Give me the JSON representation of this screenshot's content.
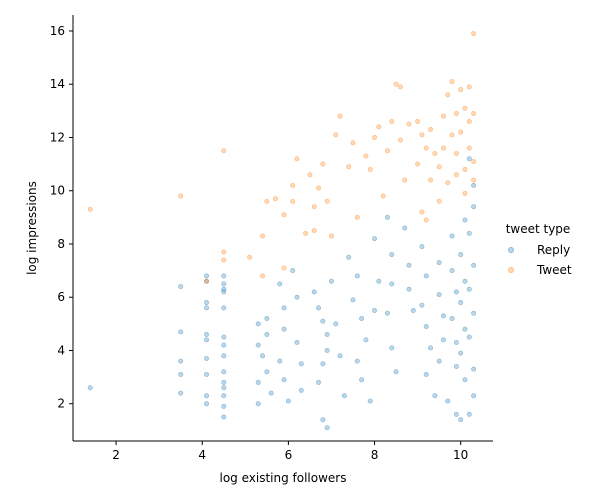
{
  "chart_data": {
    "type": "scatter",
    "title": "",
    "xlabel": "log existing followers",
    "ylabel": "log impressions",
    "xlim": [
      1.0,
      10.75
    ],
    "ylim": [
      0.6,
      16.6
    ],
    "xticks": [
      2,
      4,
      6,
      8,
      10
    ],
    "yticks": [
      2,
      4,
      6,
      8,
      10,
      12,
      14,
      16
    ],
    "grid": false,
    "legend": {
      "title": "tweet type",
      "placement": "right",
      "entries": [
        "Reply",
        "Tweet"
      ]
    },
    "colors": {
      "Reply": "#1f77b4",
      "Tweet": "#ff7f0e"
    },
    "series": [
      {
        "name": "Reply",
        "points": [
          [
            1.4,
            2.6
          ],
          [
            3.5,
            6.4
          ],
          [
            3.5,
            4.7
          ],
          [
            3.5,
            3.6
          ],
          [
            3.5,
            3.1
          ],
          [
            3.5,
            2.4
          ],
          [
            4.1,
            6.8
          ],
          [
            4.1,
            6.6
          ],
          [
            4.1,
            5.8
          ],
          [
            4.1,
            5.6
          ],
          [
            4.1,
            4.6
          ],
          [
            4.1,
            4.4
          ],
          [
            4.1,
            3.7
          ],
          [
            4.1,
            3.1
          ],
          [
            4.1,
            2.3
          ],
          [
            4.1,
            2.0
          ],
          [
            4.5,
            6.8
          ],
          [
            4.5,
            6.5
          ],
          [
            4.5,
            6.3
          ],
          [
            4.5,
            6.2
          ],
          [
            4.5,
            5.6
          ],
          [
            4.5,
            4.5
          ],
          [
            4.5,
            4.2
          ],
          [
            4.5,
            3.8
          ],
          [
            4.5,
            3.2
          ],
          [
            4.5,
            2.8
          ],
          [
            4.5,
            2.6
          ],
          [
            4.5,
            2.3
          ],
          [
            4.5,
            1.9
          ],
          [
            4.5,
            1.5
          ],
          [
            5.3,
            5.0
          ],
          [
            5.3,
            4.2
          ],
          [
            5.4,
            3.8
          ],
          [
            5.3,
            2.8
          ],
          [
            5.3,
            2.0
          ],
          [
            5.5,
            5.2
          ],
          [
            5.5,
            4.6
          ],
          [
            5.5,
            3.2
          ],
          [
            5.6,
            2.4
          ],
          [
            5.8,
            6.5
          ],
          [
            5.9,
            5.6
          ],
          [
            5.9,
            4.8
          ],
          [
            5.8,
            3.6
          ],
          [
            5.9,
            2.9
          ],
          [
            6.0,
            2.1
          ],
          [
            6.1,
            7.0
          ],
          [
            6.2,
            6.0
          ],
          [
            6.2,
            4.3
          ],
          [
            6.3,
            3.5
          ],
          [
            6.3,
            2.5
          ],
          [
            6.6,
            6.2
          ],
          [
            6.7,
            5.6
          ],
          [
            6.8,
            5.1
          ],
          [
            6.9,
            4.6
          ],
          [
            6.9,
            4.0
          ],
          [
            6.8,
            3.5
          ],
          [
            6.7,
            2.8
          ],
          [
            6.8,
            1.4
          ],
          [
            6.9,
            1.1
          ],
          [
            7.0,
            6.6
          ],
          [
            7.1,
            5.0
          ],
          [
            7.2,
            3.8
          ],
          [
            7.3,
            2.3
          ],
          [
            7.4,
            7.5
          ],
          [
            7.6,
            6.8
          ],
          [
            7.5,
            5.9
          ],
          [
            7.7,
            5.2
          ],
          [
            7.8,
            4.4
          ],
          [
            7.6,
            3.6
          ],
          [
            7.7,
            2.9
          ],
          [
            7.9,
            2.1
          ],
          [
            8.0,
            8.2
          ],
          [
            8.1,
            6.6
          ],
          [
            8.0,
            5.5
          ],
          [
            8.3,
            9.0
          ],
          [
            8.4,
            7.6
          ],
          [
            8.4,
            6.5
          ],
          [
            8.3,
            5.4
          ],
          [
            8.4,
            4.1
          ],
          [
            8.5,
            3.2
          ],
          [
            8.7,
            8.6
          ],
          [
            8.8,
            7.2
          ],
          [
            8.8,
            6.3
          ],
          [
            8.9,
            5.5
          ],
          [
            9.1,
            7.9
          ],
          [
            9.2,
            6.8
          ],
          [
            9.1,
            5.7
          ],
          [
            9.2,
            4.9
          ],
          [
            9.3,
            4.1
          ],
          [
            9.2,
            3.1
          ],
          [
            9.4,
            2.3
          ],
          [
            9.5,
            7.3
          ],
          [
            9.5,
            6.1
          ],
          [
            9.6,
            5.3
          ],
          [
            9.6,
            4.4
          ],
          [
            9.5,
            3.6
          ],
          [
            9.7,
            2.1
          ],
          [
            9.8,
            8.3
          ],
          [
            9.8,
            7.0
          ],
          [
            9.9,
            6.2
          ],
          [
            9.8,
            5.2
          ],
          [
            9.9,
            4.3
          ],
          [
            9.9,
            3.4
          ],
          [
            9.9,
            1.6
          ],
          [
            10.0,
            1.4
          ],
          [
            10.1,
            8.9
          ],
          [
            10.0,
            7.6
          ],
          [
            10.1,
            6.6
          ],
          [
            10.0,
            5.8
          ],
          [
            10.1,
            4.8
          ],
          [
            10.0,
            3.9
          ],
          [
            10.1,
            2.9
          ],
          [
            10.2,
            1.6
          ],
          [
            10.2,
            11.2
          ],
          [
            10.3,
            10.2
          ],
          [
            10.3,
            9.4
          ],
          [
            10.2,
            8.4
          ],
          [
            10.3,
            7.2
          ],
          [
            10.2,
            6.3
          ],
          [
            10.3,
            5.4
          ],
          [
            10.2,
            4.5
          ],
          [
            10.3,
            3.3
          ],
          [
            10.3,
            2.3
          ]
        ]
      },
      {
        "name": "Tweet",
        "points": [
          [
            1.4,
            9.3
          ],
          [
            3.5,
            9.8
          ],
          [
            4.1,
            6.6
          ],
          [
            4.5,
            11.5
          ],
          [
            4.5,
            7.7
          ],
          [
            4.5,
            7.4
          ],
          [
            5.1,
            7.5
          ],
          [
            5.4,
            6.8
          ],
          [
            5.4,
            8.3
          ],
          [
            5.5,
            9.6
          ],
          [
            5.7,
            9.7
          ],
          [
            5.9,
            9.1
          ],
          [
            5.9,
            7.1
          ],
          [
            6.1,
            9.6
          ],
          [
            6.1,
            10.2
          ],
          [
            6.2,
            11.2
          ],
          [
            6.4,
            8.4
          ],
          [
            6.5,
            10.6
          ],
          [
            6.6,
            9.4
          ],
          [
            6.7,
            10.1
          ],
          [
            6.6,
            8.5
          ],
          [
            6.8,
            11.0
          ],
          [
            6.9,
            9.6
          ],
          [
            7.0,
            8.3
          ],
          [
            7.1,
            12.1
          ],
          [
            7.2,
            12.8
          ],
          [
            7.4,
            10.9
          ],
          [
            7.5,
            11.8
          ],
          [
            7.6,
            9.0
          ],
          [
            7.8,
            11.3
          ],
          [
            7.9,
            10.8
          ],
          [
            8.0,
            12.0
          ],
          [
            8.1,
            12.4
          ],
          [
            8.2,
            9.8
          ],
          [
            8.3,
            11.5
          ],
          [
            8.4,
            12.6
          ],
          [
            8.5,
            14.0
          ],
          [
            8.6,
            13.9
          ],
          [
            8.6,
            11.9
          ],
          [
            8.7,
            10.4
          ],
          [
            8.8,
            12.5
          ],
          [
            9.0,
            12.6
          ],
          [
            9.0,
            11.0
          ],
          [
            9.1,
            12.1
          ],
          [
            9.1,
            9.2
          ],
          [
            9.2,
            11.6
          ],
          [
            9.2,
            8.9
          ],
          [
            9.3,
            10.4
          ],
          [
            9.3,
            12.3
          ],
          [
            9.4,
            11.4
          ],
          [
            9.5,
            9.6
          ],
          [
            9.5,
            10.9
          ],
          [
            9.6,
            12.8
          ],
          [
            9.6,
            11.6
          ],
          [
            9.7,
            10.3
          ],
          [
            9.7,
            13.6
          ],
          [
            9.8,
            12.1
          ],
          [
            9.8,
            14.1
          ],
          [
            9.9,
            12.9
          ],
          [
            9.9,
            11.4
          ],
          [
            9.9,
            10.6
          ],
          [
            10.0,
            13.8
          ],
          [
            10.0,
            12.2
          ],
          [
            10.1,
            10.8
          ],
          [
            10.1,
            9.9
          ],
          [
            10.1,
            13.1
          ],
          [
            10.2,
            12.6
          ],
          [
            10.2,
            11.6
          ],
          [
            10.2,
            13.9
          ],
          [
            10.3,
            15.9
          ],
          [
            10.3,
            12.9
          ],
          [
            10.3,
            11.1
          ],
          [
            10.3,
            10.4
          ]
        ]
      }
    ]
  }
}
